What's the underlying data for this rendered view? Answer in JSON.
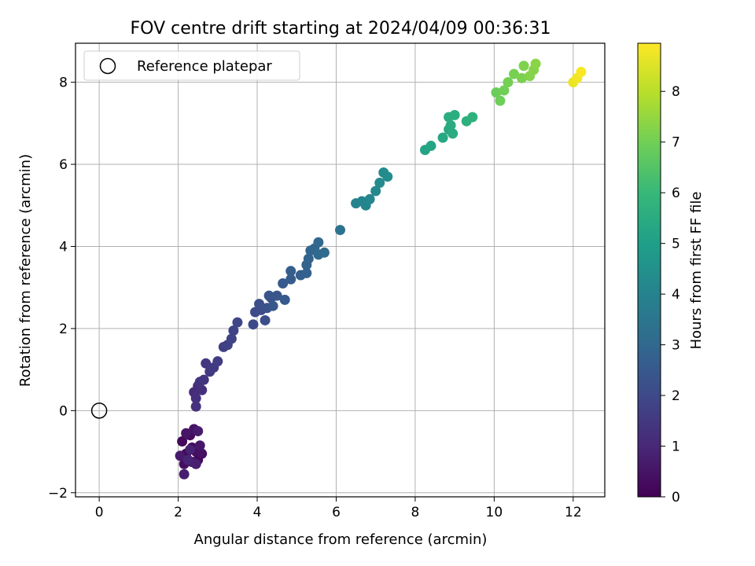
{
  "chart_data": {
    "type": "scatter",
    "title": "FOV centre drift starting at 2024/04/09 00:36:31",
    "xlabel": "Angular distance from reference (arcmin)",
    "ylabel": "Rotation from reference (arcmin)",
    "xlim": [
      -0.6,
      12.8
    ],
    "ylim": [
      -2.1,
      8.95
    ],
    "xticks": [
      0,
      2,
      4,
      6,
      8,
      10,
      12
    ],
    "yticks": [
      -2,
      0,
      2,
      4,
      6,
      8
    ],
    "grid": true,
    "legend": {
      "position": "top-left",
      "entries": [
        "Reference platepar"
      ]
    },
    "reference_point": {
      "x": 0,
      "y": 0
    },
    "colorbar": {
      "label": "Hours from first FF file",
      "min": 0,
      "max": 8.95,
      "ticks": [
        0,
        1,
        2,
        3,
        4,
        5,
        6,
        7,
        8
      ],
      "colormap": "viridis",
      "colors": [
        "#440154",
        "#482878",
        "#3e4989",
        "#31688e",
        "#26828e",
        "#1f9e89",
        "#35b779",
        "#6ece58",
        "#b5de2b",
        "#fde725"
      ]
    },
    "points": [
      {
        "x": 2.2,
        "y": -1.05,
        "t": 0.05
      },
      {
        "x": 2.35,
        "y": -0.9,
        "t": 0.1
      },
      {
        "x": 2.5,
        "y": -1.2,
        "t": 0.15
      },
      {
        "x": 2.1,
        "y": -0.75,
        "t": 0.2
      },
      {
        "x": 2.3,
        "y": -0.6,
        "t": 0.25
      },
      {
        "x": 2.45,
        "y": -1.0,
        "t": 0.3
      },
      {
        "x": 2.15,
        "y": -1.3,
        "t": 0.35
      },
      {
        "x": 2.6,
        "y": -1.05,
        "t": 0.4
      },
      {
        "x": 2.4,
        "y": -0.45,
        "t": 0.45
      },
      {
        "x": 2.2,
        "y": -0.55,
        "t": 0.5
      },
      {
        "x": 2.55,
        "y": -0.85,
        "t": 0.55
      },
      {
        "x": 2.35,
        "y": -1.25,
        "t": 0.6
      },
      {
        "x": 2.05,
        "y": -1.1,
        "t": 0.65
      },
      {
        "x": 2.5,
        "y": -0.5,
        "t": 0.7
      },
      {
        "x": 2.15,
        "y": -1.55,
        "t": 0.75
      },
      {
        "x": 2.45,
        "y": -1.3,
        "t": 0.8
      },
      {
        "x": 2.3,
        "y": -0.95,
        "t": 0.85
      },
      {
        "x": 2.25,
        "y": -1.2,
        "t": 0.9
      },
      {
        "x": 2.4,
        "y": 0.45,
        "t": 1.1
      },
      {
        "x": 2.5,
        "y": 0.6,
        "t": 1.15
      },
      {
        "x": 2.45,
        "y": 0.3,
        "t": 1.2
      },
      {
        "x": 2.6,
        "y": 0.5,
        "t": 1.25
      },
      {
        "x": 2.45,
        "y": 0.1,
        "t": 1.3
      },
      {
        "x": 2.55,
        "y": 0.7,
        "t": 1.35
      },
      {
        "x": 2.65,
        "y": 0.75,
        "t": 1.4
      },
      {
        "x": 2.7,
        "y": 1.15,
        "t": 1.45
      },
      {
        "x": 2.9,
        "y": 1.05,
        "t": 1.5
      },
      {
        "x": 2.8,
        "y": 0.95,
        "t": 1.55
      },
      {
        "x": 3.0,
        "y": 1.2,
        "t": 1.6
      },
      {
        "x": 3.15,
        "y": 1.55,
        "t": 1.7
      },
      {
        "x": 3.25,
        "y": 1.6,
        "t": 1.75
      },
      {
        "x": 3.35,
        "y": 1.75,
        "t": 1.8
      },
      {
        "x": 3.4,
        "y": 1.95,
        "t": 1.85
      },
      {
        "x": 3.5,
        "y": 2.15,
        "t": 1.9
      },
      {
        "x": 3.9,
        "y": 2.1,
        "t": 2.0
      },
      {
        "x": 3.95,
        "y": 2.4,
        "t": 2.05
      },
      {
        "x": 4.1,
        "y": 2.45,
        "t": 2.1
      },
      {
        "x": 4.2,
        "y": 2.2,
        "t": 2.15
      },
      {
        "x": 4.05,
        "y": 2.6,
        "t": 2.2
      },
      {
        "x": 4.25,
        "y": 2.5,
        "t": 2.25
      },
      {
        "x": 4.35,
        "y": 2.75,
        "t": 2.3
      },
      {
        "x": 4.3,
        "y": 2.8,
        "t": 2.35
      },
      {
        "x": 4.5,
        "y": 2.8,
        "t": 2.4
      },
      {
        "x": 4.4,
        "y": 2.55,
        "t": 2.45
      },
      {
        "x": 4.7,
        "y": 2.7,
        "t": 2.5
      },
      {
        "x": 4.65,
        "y": 3.1,
        "t": 2.55
      },
      {
        "x": 4.85,
        "y": 3.2,
        "t": 2.6
      },
      {
        "x": 4.85,
        "y": 3.4,
        "t": 2.65
      },
      {
        "x": 5.1,
        "y": 3.3,
        "t": 2.7
      },
      {
        "x": 5.25,
        "y": 3.35,
        "t": 2.75
      },
      {
        "x": 5.25,
        "y": 3.55,
        "t": 2.8
      },
      {
        "x": 5.3,
        "y": 3.7,
        "t": 2.85
      },
      {
        "x": 5.35,
        "y": 3.9,
        "t": 2.9
      },
      {
        "x": 5.45,
        "y": 3.95,
        "t": 2.95
      },
      {
        "x": 5.55,
        "y": 4.1,
        "t": 3.0
      },
      {
        "x": 5.7,
        "y": 3.85,
        "t": 3.05
      },
      {
        "x": 5.55,
        "y": 3.8,
        "t": 3.1
      },
      {
        "x": 6.1,
        "y": 4.4,
        "t": 3.4
      },
      {
        "x": 6.5,
        "y": 5.05,
        "t": 4.0
      },
      {
        "x": 6.65,
        "y": 5.1,
        "t": 4.05
      },
      {
        "x": 6.75,
        "y": 5.0,
        "t": 4.1
      },
      {
        "x": 6.85,
        "y": 5.15,
        "t": 4.15
      },
      {
        "x": 7.0,
        "y": 5.35,
        "t": 4.2
      },
      {
        "x": 7.1,
        "y": 5.55,
        "t": 4.25
      },
      {
        "x": 7.2,
        "y": 5.8,
        "t": 4.3
      },
      {
        "x": 7.3,
        "y": 5.7,
        "t": 4.35
      },
      {
        "x": 8.25,
        "y": 6.35,
        "t": 5.2
      },
      {
        "x": 8.4,
        "y": 6.45,
        "t": 5.25
      },
      {
        "x": 8.7,
        "y": 6.65,
        "t": 5.35
      },
      {
        "x": 8.85,
        "y": 6.85,
        "t": 5.4
      },
      {
        "x": 8.9,
        "y": 6.95,
        "t": 5.45
      },
      {
        "x": 8.95,
        "y": 6.75,
        "t": 5.5
      },
      {
        "x": 8.85,
        "y": 7.15,
        "t": 5.55
      },
      {
        "x": 9.0,
        "y": 7.2,
        "t": 5.6
      },
      {
        "x": 9.3,
        "y": 7.05,
        "t": 5.65
      },
      {
        "x": 9.45,
        "y": 7.15,
        "t": 5.7
      },
      {
        "x": 10.05,
        "y": 7.75,
        "t": 6.9
      },
      {
        "x": 10.15,
        "y": 7.55,
        "t": 6.95
      },
      {
        "x": 10.25,
        "y": 7.8,
        "t": 7.0
      },
      {
        "x": 10.35,
        "y": 8.0,
        "t": 7.05
      },
      {
        "x": 10.5,
        "y": 8.2,
        "t": 7.1
      },
      {
        "x": 10.7,
        "y": 8.1,
        "t": 7.15
      },
      {
        "x": 10.75,
        "y": 8.4,
        "t": 7.2
      },
      {
        "x": 10.9,
        "y": 8.15,
        "t": 7.25
      },
      {
        "x": 11.0,
        "y": 8.3,
        "t": 7.3
      },
      {
        "x": 11.05,
        "y": 8.45,
        "t": 7.35
      },
      {
        "x": 12.0,
        "y": 8.0,
        "t": 8.7
      },
      {
        "x": 12.1,
        "y": 8.1,
        "t": 8.8
      },
      {
        "x": 12.2,
        "y": 8.25,
        "t": 8.9
      }
    ]
  }
}
